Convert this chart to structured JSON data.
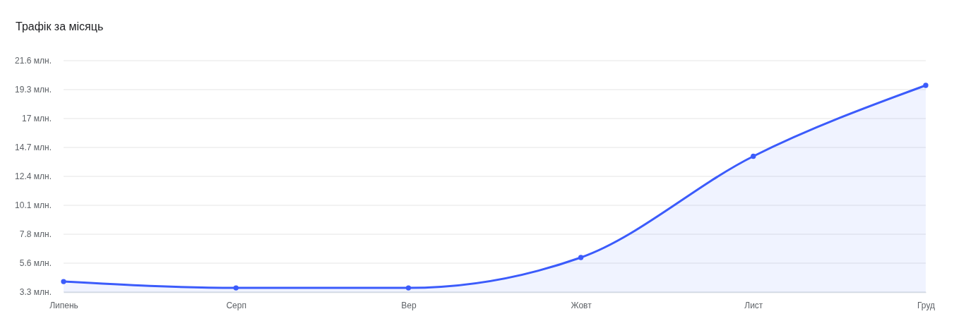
{
  "chart_data": {
    "type": "area",
    "title": "Трафік за місяць",
    "categories": [
      "Липень",
      "Серп",
      "Вер",
      "Жовт",
      "Лист",
      "Груд"
    ],
    "series": [
      {
        "color": "#3b5bfb",
        "values": [
          4.1,
          3.6,
          3.6,
          6.0,
          14.0,
          19.6
        ]
      }
    ],
    "ylim": [
      3.27,
      21.55
    ],
    "yticks": [
      {
        "value": 3.27,
        "label": "3.3 млн."
      },
      {
        "value": 5.555,
        "label": "5.6 млн."
      },
      {
        "value": 7.84,
        "label": "7.8 млн."
      },
      {
        "value": 10.125,
        "label": "10.1 млн."
      },
      {
        "value": 12.41,
        "label": "12.4 млн."
      },
      {
        "value": 14.695,
        "label": "14.7 млн."
      },
      {
        "value": 16.98,
        "label": "17 млн."
      },
      {
        "value": 19.265,
        "label": "19.3 млн."
      },
      {
        "value": 21.55,
        "label": "21.6 млн."
      }
    ],
    "grid": "y",
    "marker": "circle"
  }
}
